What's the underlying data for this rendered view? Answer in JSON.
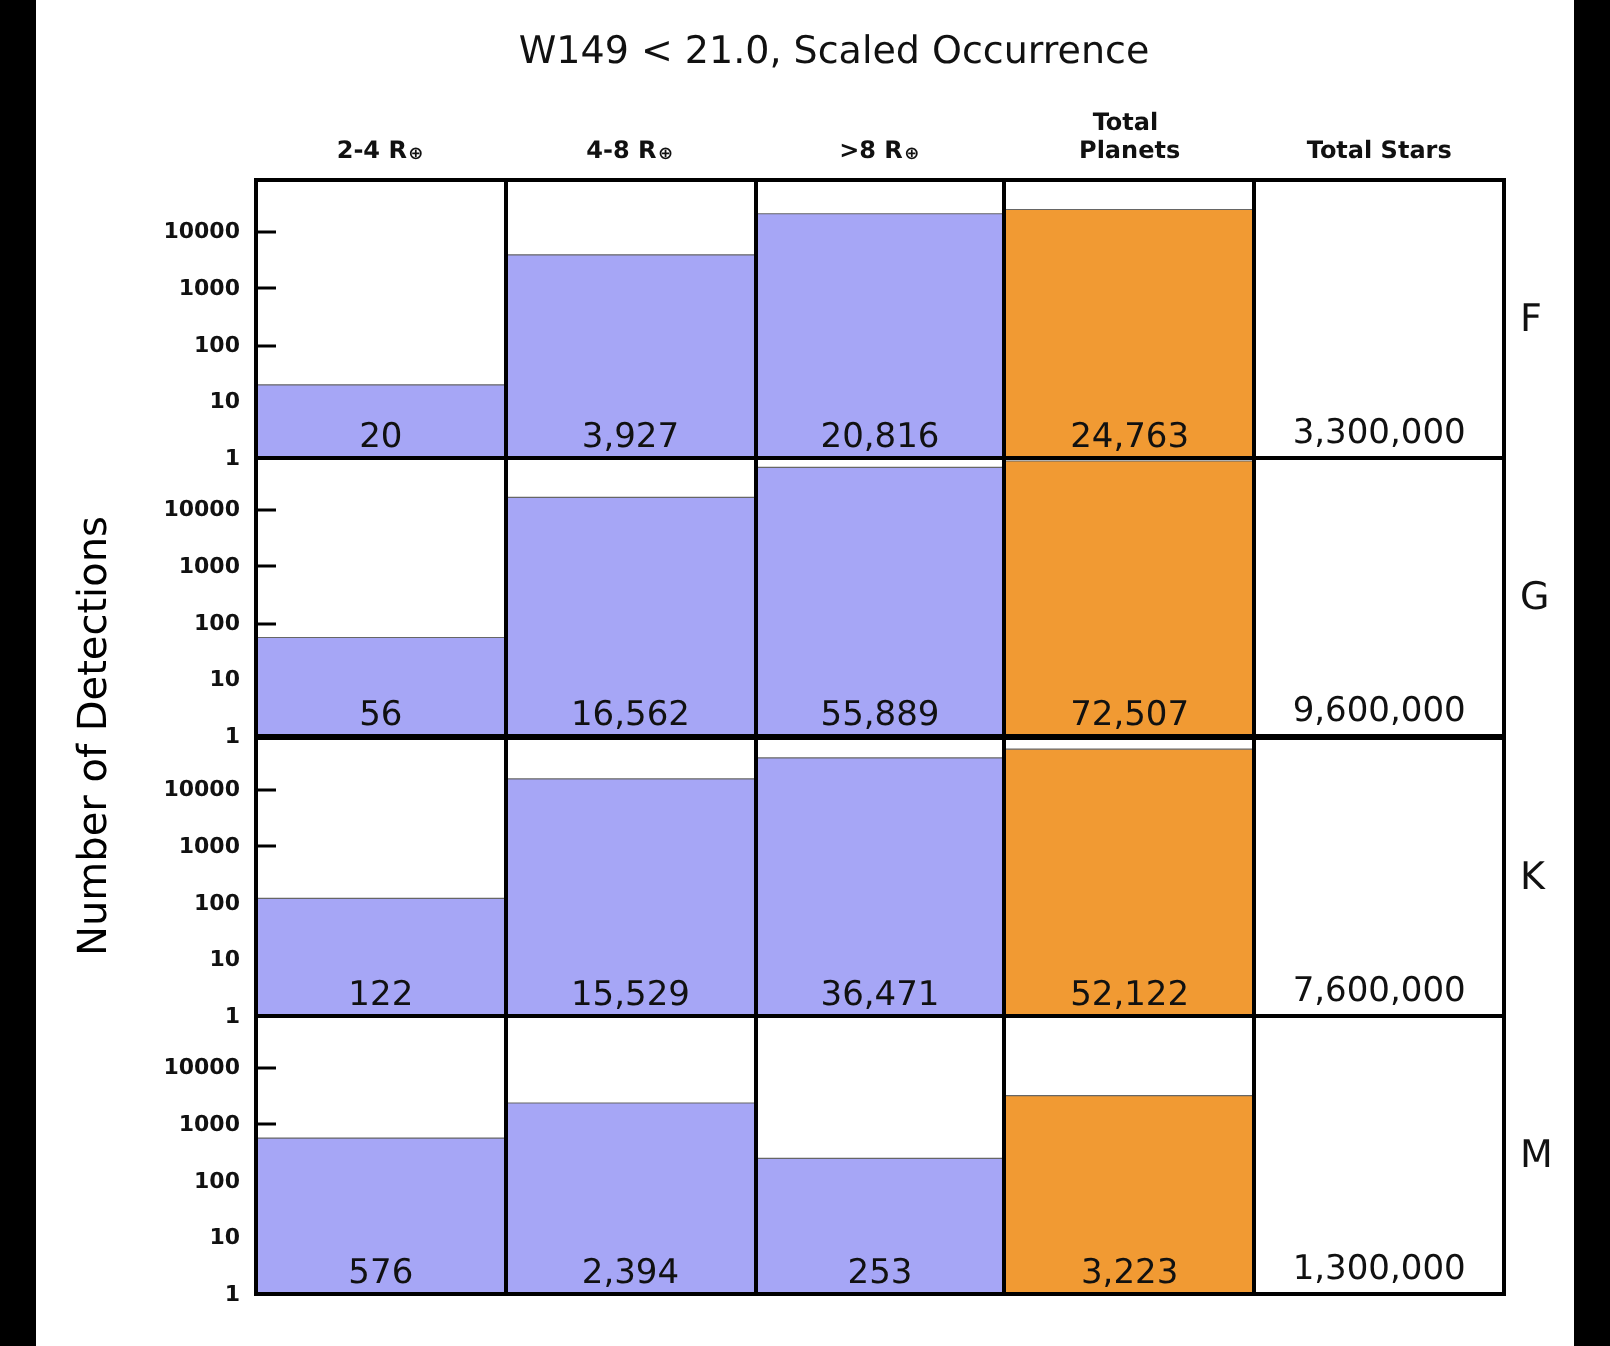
{
  "chart_data": [
    {
      "type": "bar",
      "title": "W149 < 21.0, Scaled Occurrence",
      "ylabel": "Number of Detections",
      "y2label": "F",
      "categories": [
        "2-4 R$_{⊕}$",
        "4-8 R$_{⊕}$",
        ">8 R$_{⊕}$",
        "Total Planets",
        "Total Stars"
      ],
      "values": [
        20,
        3927,
        20816,
        24763,
        null
      ],
      "colors": [
        "#a6a6f6",
        "#a6a6f6",
        "#a6a6f6",
        "#f19a33",
        null
      ],
      "value_labels": [
        "20",
        "3,927",
        "20,816",
        "24,763",
        "3,300,000"
      ],
      "log": true,
      "ylim": [
        1,
        80000
      ],
      "yticks": [
        1,
        10,
        100,
        1000,
        10000
      ]
    },
    {
      "type": "bar",
      "y2label": "G",
      "categories": [
        "2-4 R$_{⊕}$",
        "4-8 R$_{⊕}$",
        ">8 R$_{⊕}$",
        "Total Planets",
        "Total Stars"
      ],
      "values": [
        56,
        16562,
        55889,
        72507,
        null
      ],
      "colors": [
        "#a6a6f6",
        "#a6a6f6",
        "#a6a6f6",
        "#f19a33",
        null
      ],
      "value_labels": [
        "56",
        "16,562",
        "55,889",
        "72,507",
        "9,600,000"
      ],
      "log": true,
      "ylim": [
        1,
        80000
      ],
      "yticks": [
        1,
        10,
        100,
        1000,
        10000
      ],
      "tick_labels": "y"
    },
    {
      "type": "bar",
      "y2label": "K",
      "categories": [
        "2-4 R$_{⊕}$",
        "4-8 R$_{⊕}$",
        ">8 R$_{⊕}$",
        "Total Planets",
        "Total Stars"
      ],
      "values": [
        122,
        15529,
        36471,
        52122,
        null
      ],
      "colors": [
        "#a6a6f6",
        "#a6a6f6",
        "#a6a6f6",
        "#f19a33",
        null
      ],
      "value_labels": [
        "122",
        "15,529",
        "36,471",
        "52,122",
        "7,600,000"
      ],
      "log": true,
      "ylim": [
        1,
        80000
      ],
      "yticks": [
        1,
        10,
        100,
        1000,
        10000
      ],
      "tick_labels": "y"
    },
    {
      "type": "bar",
      "y2label": "M",
      "categories": [
        "2-4 R$_{⊕}$",
        "4-8 R$_{⊕}$",
        ">8 R$_{⊕}$",
        "Total Planets",
        "Total Stars"
      ],
      "values": [
        576,
        2394,
        253,
        3223,
        null
      ],
      "colors": [
        "#a6a6f6",
        "#a6a6f6",
        "#a6a6f6",
        "#f19a33",
        null
      ],
      "value_labels": [
        "576",
        "2,394",
        "253",
        "3,223",
        "1,300,000"
      ],
      "log": true,
      "ylim": [
        1,
        80000
      ],
      "yticks": [
        1,
        10,
        100,
        1000,
        10000
      ],
      "tick_labels": "y"
    }
  ]
}
